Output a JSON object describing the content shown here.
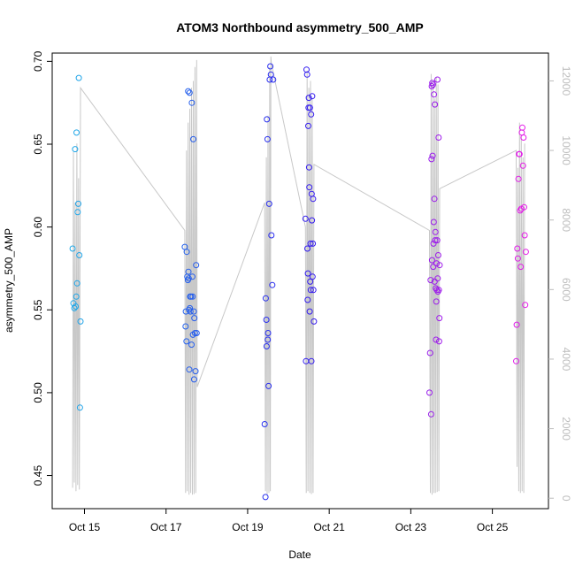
{
  "chart_data": {
    "type": "scatter",
    "title": "ATOM3 Northbound asymmetry_500_AMP",
    "xlabel": "Date",
    "ylabel": "asymmetry_500_AMP",
    "xlim": [
      "2023-10-14T05:00",
      "2023-10-26T09:00"
    ],
    "ylim": [
      0.43,
      0.705
    ],
    "y2lim": [
      -300,
      12800
    ],
    "x_ticks": [
      {
        "label": "Oct 15",
        "date": "2023-10-15T00:00"
      },
      {
        "label": "Oct 17",
        "date": "2023-10-17T00:00"
      },
      {
        "label": "Oct 19",
        "date": "2023-10-19T00:00"
      },
      {
        "label": "Oct 21",
        "date": "2023-10-21T00:00"
      },
      {
        "label": "Oct 23",
        "date": "2023-10-23T00:00"
      },
      {
        "label": "Oct 25",
        "date": "2023-10-25T00:00"
      }
    ],
    "y_ticks": [
      "0.45",
      "0.50",
      "0.55",
      "0.60",
      "0.65",
      "0.70"
    ],
    "y2_ticks": [
      "0",
      "2000",
      "4000",
      "6000",
      "8000",
      "10000",
      "12000"
    ],
    "grid": false,
    "legend": "none",
    "colors": {
      "line": "#c8c8c8",
      "point_start": "#1fa8e8",
      "point_mid": "#2a1bf0",
      "point_end": "#e71ae8",
      "right_axis": "#bdbdbd"
    },
    "points": [
      {
        "x": "2023-10-14T17:00",
        "y": 0.587
      },
      {
        "x": "2023-10-14T17:30",
        "y": 0.554
      },
      {
        "x": "2023-10-14T18:00",
        "y": 0.551
      },
      {
        "x": "2023-10-14T18:30",
        "y": 0.647
      },
      {
        "x": "2023-10-14T18:50",
        "y": 0.552
      },
      {
        "x": "2023-10-14T19:10",
        "y": 0.558
      },
      {
        "x": "2023-10-14T19:20",
        "y": 0.657
      },
      {
        "x": "2023-10-14T19:40",
        "y": 0.566
      },
      {
        "x": "2023-10-14T20:00",
        "y": 0.609
      },
      {
        "x": "2023-10-14T20:20",
        "y": 0.614
      },
      {
        "x": "2023-10-14T20:40",
        "y": 0.69
      },
      {
        "x": "2023-10-14T21:00",
        "y": 0.583
      },
      {
        "x": "2023-10-14T21:20",
        "y": 0.491
      },
      {
        "x": "2023-10-14T21:40",
        "y": 0.543
      },
      {
        "x": "2023-10-17T11:00",
        "y": 0.588
      },
      {
        "x": "2023-10-17T11:30",
        "y": 0.54
      },
      {
        "x": "2023-10-17T11:40",
        "y": 0.549
      },
      {
        "x": "2023-10-17T12:00",
        "y": 0.531
      },
      {
        "x": "2023-10-17T12:10",
        "y": 0.585
      },
      {
        "x": "2023-10-17T12:30",
        "y": 0.57
      },
      {
        "x": "2023-10-17T12:50",
        "y": 0.568
      },
      {
        "x": "2023-10-17T13:00",
        "y": 0.682
      },
      {
        "x": "2023-10-17T13:10",
        "y": 0.573
      },
      {
        "x": "2023-10-17T13:20",
        "y": 0.569
      },
      {
        "x": "2023-10-17T13:30",
        "y": 0.55
      },
      {
        "x": "2023-10-17T13:40",
        "y": 0.514
      },
      {
        "x": "2023-10-17T13:50",
        "y": 0.681
      },
      {
        "x": "2023-10-17T14:00",
        "y": 0.551
      },
      {
        "x": "2023-10-17T14:10",
        "y": 0.558
      },
      {
        "x": "2023-10-17T14:20",
        "y": 0.549
      },
      {
        "x": "2023-10-17T14:40",
        "y": 0.558
      },
      {
        "x": "2023-10-17T15:00",
        "y": 0.529
      },
      {
        "x": "2023-10-17T15:10",
        "y": 0.675
      },
      {
        "x": "2023-10-17T15:30",
        "y": 0.57
      },
      {
        "x": "2023-10-17T15:40",
        "y": 0.558
      },
      {
        "x": "2023-10-17T15:50",
        "y": 0.535
      },
      {
        "x": "2023-10-17T16:00",
        "y": 0.653
      },
      {
        "x": "2023-10-17T16:20",
        "y": 0.549
      },
      {
        "x": "2023-10-17T16:30",
        "y": 0.508
      },
      {
        "x": "2023-10-17T16:40",
        "y": 0.545
      },
      {
        "x": "2023-10-17T17:00",
        "y": 0.536
      },
      {
        "x": "2023-10-17T17:20",
        "y": 0.513
      },
      {
        "x": "2023-10-17T17:40",
        "y": 0.577
      },
      {
        "x": "2023-10-17T18:00",
        "y": 0.536
      },
      {
        "x": "2023-10-19T10:00",
        "y": 0.481
      },
      {
        "x": "2023-10-19T10:30",
        "y": 0.437
      },
      {
        "x": "2023-10-19T10:40",
        "y": 0.557
      },
      {
        "x": "2023-10-19T11:00",
        "y": 0.544
      },
      {
        "x": "2023-10-19T11:10",
        "y": 0.528
      },
      {
        "x": "2023-10-19T11:20",
        "y": 0.665
      },
      {
        "x": "2023-10-19T11:40",
        "y": 0.653
      },
      {
        "x": "2023-10-19T11:50",
        "y": 0.532
      },
      {
        "x": "2023-10-19T12:00",
        "y": 0.536
      },
      {
        "x": "2023-10-19T12:20",
        "y": 0.504
      },
      {
        "x": "2023-10-19T12:40",
        "y": 0.614
      },
      {
        "x": "2023-10-19T13:00",
        "y": 0.689
      },
      {
        "x": "2023-10-19T13:20",
        "y": 0.697
      },
      {
        "x": "2023-10-19T13:40",
        "y": 0.692
      },
      {
        "x": "2023-10-19T14:00",
        "y": 0.595
      },
      {
        "x": "2023-10-19T14:30",
        "y": 0.565
      },
      {
        "x": "2023-10-19T15:00",
        "y": 0.689
      },
      {
        "x": "2023-10-20T10:00",
        "y": 0.605
      },
      {
        "x": "2023-10-20T10:20",
        "y": 0.519
      },
      {
        "x": "2023-10-20T10:40",
        "y": 0.695
      },
      {
        "x": "2023-10-20T11:00",
        "y": 0.692
      },
      {
        "x": "2023-10-20T11:10",
        "y": 0.587
      },
      {
        "x": "2023-10-20T11:20",
        "y": 0.556
      },
      {
        "x": "2023-10-20T11:30",
        "y": 0.572
      },
      {
        "x": "2023-10-20T11:40",
        "y": 0.661
      },
      {
        "x": "2023-10-20T11:50",
        "y": 0.672
      },
      {
        "x": "2023-10-20T12:00",
        "y": 0.678
      },
      {
        "x": "2023-10-20T12:10",
        "y": 0.636
      },
      {
        "x": "2023-10-20T12:20",
        "y": 0.624
      },
      {
        "x": "2023-10-20T12:30",
        "y": 0.549
      },
      {
        "x": "2023-10-20T12:40",
        "y": 0.672
      },
      {
        "x": "2023-10-20T12:50",
        "y": 0.567
      },
      {
        "x": "2023-10-20T13:00",
        "y": 0.59
      },
      {
        "x": "2023-10-20T13:10",
        "y": 0.562
      },
      {
        "x": "2023-10-20T13:20",
        "y": 0.668
      },
      {
        "x": "2023-10-20T13:30",
        "y": 0.519
      },
      {
        "x": "2023-10-20T13:40",
        "y": 0.62
      },
      {
        "x": "2023-10-20T13:50",
        "y": 0.604
      },
      {
        "x": "2023-10-20T14:00",
        "y": 0.679
      },
      {
        "x": "2023-10-20T14:10",
        "y": 0.57
      },
      {
        "x": "2023-10-20T14:20",
        "y": 0.59
      },
      {
        "x": "2023-10-20T14:30",
        "y": 0.617
      },
      {
        "x": "2023-10-20T14:40",
        "y": 0.562
      },
      {
        "x": "2023-10-20T15:00",
        "y": 0.543
      },
      {
        "x": "2023-10-23T11:00",
        "y": 0.5
      },
      {
        "x": "2023-10-23T11:20",
        "y": 0.524
      },
      {
        "x": "2023-10-23T11:40",
        "y": 0.568
      },
      {
        "x": "2023-10-23T12:00",
        "y": 0.487
      },
      {
        "x": "2023-10-23T12:10",
        "y": 0.641
      },
      {
        "x": "2023-10-23T12:20",
        "y": 0.685
      },
      {
        "x": "2023-10-23T12:30",
        "y": 0.58
      },
      {
        "x": "2023-10-23T12:40",
        "y": 0.687
      },
      {
        "x": "2023-10-23T12:50",
        "y": 0.643
      },
      {
        "x": "2023-10-23T13:00",
        "y": 0.686
      },
      {
        "x": "2023-10-23T13:10",
        "y": 0.576
      },
      {
        "x": "2023-10-23T13:20",
        "y": 0.59
      },
      {
        "x": "2023-10-23T13:30",
        "y": 0.603
      },
      {
        "x": "2023-10-23T13:40",
        "y": 0.68
      },
      {
        "x": "2023-10-23T13:50",
        "y": 0.617
      },
      {
        "x": "2023-10-23T14:00",
        "y": 0.567
      },
      {
        "x": "2023-10-23T14:10",
        "y": 0.674
      },
      {
        "x": "2023-10-23T14:20",
        "y": 0.592
      },
      {
        "x": "2023-10-23T14:30",
        "y": 0.597
      },
      {
        "x": "2023-10-23T14:40",
        "y": 0.563
      },
      {
        "x": "2023-10-23T14:50",
        "y": 0.532
      },
      {
        "x": "2023-10-23T15:00",
        "y": 0.555
      },
      {
        "x": "2023-10-23T15:10",
        "y": 0.578
      },
      {
        "x": "2023-10-23T15:20",
        "y": 0.562
      },
      {
        "x": "2023-10-23T15:30",
        "y": 0.592
      },
      {
        "x": "2023-10-23T15:40",
        "y": 0.689
      },
      {
        "x": "2023-10-23T15:50",
        "y": 0.569
      },
      {
        "x": "2023-10-23T16:00",
        "y": 0.561
      },
      {
        "x": "2023-10-23T16:10",
        "y": 0.583
      },
      {
        "x": "2023-10-23T16:20",
        "y": 0.654
      },
      {
        "x": "2023-10-23T16:30",
        "y": 0.562
      },
      {
        "x": "2023-10-23T16:40",
        "y": 0.531
      },
      {
        "x": "2023-10-23T16:50",
        "y": 0.545
      },
      {
        "x": "2023-10-23T17:00",
        "y": 0.577
      },
      {
        "x": "2023-10-25T14:00",
        "y": 0.519
      },
      {
        "x": "2023-10-25T14:20",
        "y": 0.541
      },
      {
        "x": "2023-10-25T14:40",
        "y": 0.587
      },
      {
        "x": "2023-10-25T15:00",
        "y": 0.581
      },
      {
        "x": "2023-10-25T15:20",
        "y": 0.629
      },
      {
        "x": "2023-10-25T15:40",
        "y": 0.644
      },
      {
        "x": "2023-10-25T16:00",
        "y": 0.644
      },
      {
        "x": "2023-10-25T16:20",
        "y": 0.61
      },
      {
        "x": "2023-10-25T16:40",
        "y": 0.576
      },
      {
        "x": "2023-10-25T17:00",
        "y": 0.611
      },
      {
        "x": "2023-10-25T17:20",
        "y": 0.657
      },
      {
        "x": "2023-10-25T17:40",
        "y": 0.66
      },
      {
        "x": "2023-10-25T18:00",
        "y": 0.637
      },
      {
        "x": "2023-10-25T18:20",
        "y": 0.654
      },
      {
        "x": "2023-10-25T18:40",
        "y": 0.612
      },
      {
        "x": "2023-10-25T19:00",
        "y": 0.595
      },
      {
        "x": "2023-10-25T19:20",
        "y": 0.553
      },
      {
        "x": "2023-10-25T19:40",
        "y": 0.585
      }
    ],
    "line_series": {
      "axis": "right",
      "points": [
        {
          "x": "2023-10-14T17:00",
          "y": 300
        },
        {
          "x": "2023-10-14T17:30",
          "y": 9950
        },
        {
          "x": "2023-10-14T18:00",
          "y": 450
        },
        {
          "x": "2023-10-14T18:30",
          "y": 8500
        },
        {
          "x": "2023-10-14T19:00",
          "y": 200
        },
        {
          "x": "2023-10-14T19:30",
          "y": 10200
        },
        {
          "x": "2023-10-14T20:00",
          "y": 380
        },
        {
          "x": "2023-10-14T20:30",
          "y": 9200
        },
        {
          "x": "2023-10-14T21:00",
          "y": 250
        },
        {
          "x": "2023-10-14T21:40",
          "y": 11800
        },
        {
          "x": "2023-10-17T11:00",
          "y": 7700
        },
        {
          "x": "2023-10-17T11:30",
          "y": 150
        },
        {
          "x": "2023-10-17T12:00",
          "y": 10000
        },
        {
          "x": "2023-10-17T12:30",
          "y": 200
        },
        {
          "x": "2023-10-17T13:00",
          "y": 10800
        },
        {
          "x": "2023-10-17T13:30",
          "y": 100
        },
        {
          "x": "2023-10-17T14:00",
          "y": 11200
        },
        {
          "x": "2023-10-17T14:30",
          "y": 150
        },
        {
          "x": "2023-10-17T15:00",
          "y": 11800
        },
        {
          "x": "2023-10-17T15:30",
          "y": 100
        },
        {
          "x": "2023-10-17T16:00",
          "y": 12000
        },
        {
          "x": "2023-10-17T16:30",
          "y": 120
        },
        {
          "x": "2023-10-17T17:00",
          "y": 12400
        },
        {
          "x": "2023-10-17T17:30",
          "y": 150
        },
        {
          "x": "2023-10-17T18:00",
          "y": 12600
        },
        {
          "x": "2023-10-17T18:20",
          "y": 3200
        },
        {
          "x": "2023-10-19T10:00",
          "y": 8500
        },
        {
          "x": "2023-10-19T10:30",
          "y": 200
        },
        {
          "x": "2023-10-19T11:00",
          "y": 9800
        },
        {
          "x": "2023-10-19T11:30",
          "y": 100
        },
        {
          "x": "2023-10-19T12:00",
          "y": 11000
        },
        {
          "x": "2023-10-19T12:30",
          "y": 150
        },
        {
          "x": "2023-10-19T13:00",
          "y": 12400
        },
        {
          "x": "2023-10-19T13:20",
          "y": 200
        },
        {
          "x": "2023-10-19T13:40",
          "y": 12700
        },
        {
          "x": "2023-10-19T14:00",
          "y": 12500
        },
        {
          "x": "2023-10-20T10:00",
          "y": 7800
        },
        {
          "x": "2023-10-20T10:30",
          "y": 150
        },
        {
          "x": "2023-10-20T11:00",
          "y": 12300
        },
        {
          "x": "2023-10-20T11:30",
          "y": 200
        },
        {
          "x": "2023-10-20T12:00",
          "y": 11800
        },
        {
          "x": "2023-10-20T12:30",
          "y": 150
        },
        {
          "x": "2023-10-20T13:00",
          "y": 12000
        },
        {
          "x": "2023-10-20T13:30",
          "y": 120
        },
        {
          "x": "2023-10-20T14:00",
          "y": 11500
        },
        {
          "x": "2023-10-20T14:30",
          "y": 150
        },
        {
          "x": "2023-10-20T15:00",
          "y": 9600
        },
        {
          "x": "2023-10-23T11:00",
          "y": 7700
        },
        {
          "x": "2023-10-23T11:30",
          "y": 150
        },
        {
          "x": "2023-10-23T12:00",
          "y": 12200
        },
        {
          "x": "2023-10-23T12:30",
          "y": 100
        },
        {
          "x": "2023-10-23T13:00",
          "y": 12000
        },
        {
          "x": "2023-10-23T13:30",
          "y": 150
        },
        {
          "x": "2023-10-23T14:00",
          "y": 11500
        },
        {
          "x": "2023-10-23T14:30",
          "y": 150
        },
        {
          "x": "2023-10-23T15:00",
          "y": 12100
        },
        {
          "x": "2023-10-23T15:30",
          "y": 180
        },
        {
          "x": "2023-10-23T16:00",
          "y": 11900
        },
        {
          "x": "2023-10-23T16:30",
          "y": 200
        },
        {
          "x": "2023-10-23T17:00",
          "y": 8900
        },
        {
          "x": "2023-10-25T14:00",
          "y": 10000
        },
        {
          "x": "2023-10-25T14:30",
          "y": 900
        },
        {
          "x": "2023-10-25T15:00",
          "y": 9500
        },
        {
          "x": "2023-10-25T15:30",
          "y": 200
        },
        {
          "x": "2023-10-25T16:00",
          "y": 10800
        },
        {
          "x": "2023-10-25T16:30",
          "y": 150
        },
        {
          "x": "2023-10-25T17:00",
          "y": 10400
        },
        {
          "x": "2023-10-25T17:30",
          "y": 200
        },
        {
          "x": "2023-10-25T18:00",
          "y": 9800
        },
        {
          "x": "2023-10-25T18:30",
          "y": 150
        },
        {
          "x": "2023-10-25T19:00",
          "y": 10200
        }
      ]
    }
  }
}
